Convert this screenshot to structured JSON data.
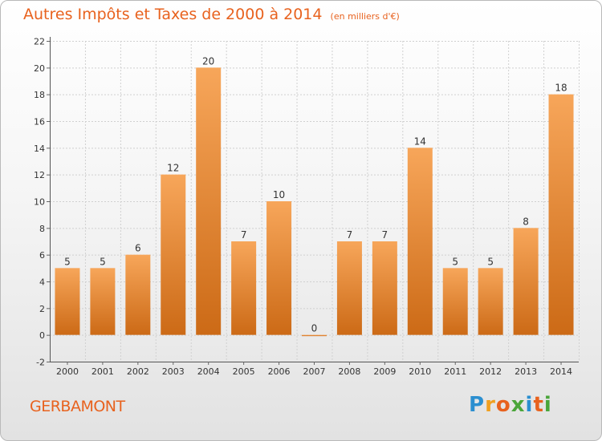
{
  "title": "Autres Impôts et Taxes de 2000 à 2014",
  "unit_note": "(en milliers d'€)",
  "location": "GERBAMONT",
  "brand": {
    "letters": [
      "P",
      "r",
      "o",
      "x",
      "i",
      "t",
      "i"
    ],
    "colors": [
      "#2b8fd0",
      "#f0a020",
      "#e8621e",
      "#4aa53a",
      "#2b8fd0",
      "#e8621e",
      "#4aa53a"
    ]
  },
  "colors": {
    "bar_top": "#f7a65a",
    "bar_bottom": "#cc6a16",
    "grid": "#d0d0d0",
    "title": "#e8621e"
  },
  "chart_data": {
    "type": "bar",
    "title": "Autres Impôts et Taxes de 2000 à 2014",
    "subtitle": "(en milliers d'€)",
    "categories": [
      "2000",
      "2001",
      "2002",
      "2003",
      "2004",
      "2005",
      "2006",
      "2007",
      "2008",
      "2009",
      "2010",
      "2011",
      "2012",
      "2013",
      "2014"
    ],
    "values": [
      5,
      5,
      6,
      12,
      20,
      7,
      10,
      0,
      7,
      7,
      14,
      5,
      5,
      8,
      18
    ],
    "ylim": [
      -2,
      22
    ],
    "yticks": [
      -2,
      0,
      2,
      4,
      6,
      8,
      10,
      12,
      14,
      16,
      18,
      20,
      22
    ],
    "grid": true,
    "xlabel": "",
    "ylabel": ""
  }
}
